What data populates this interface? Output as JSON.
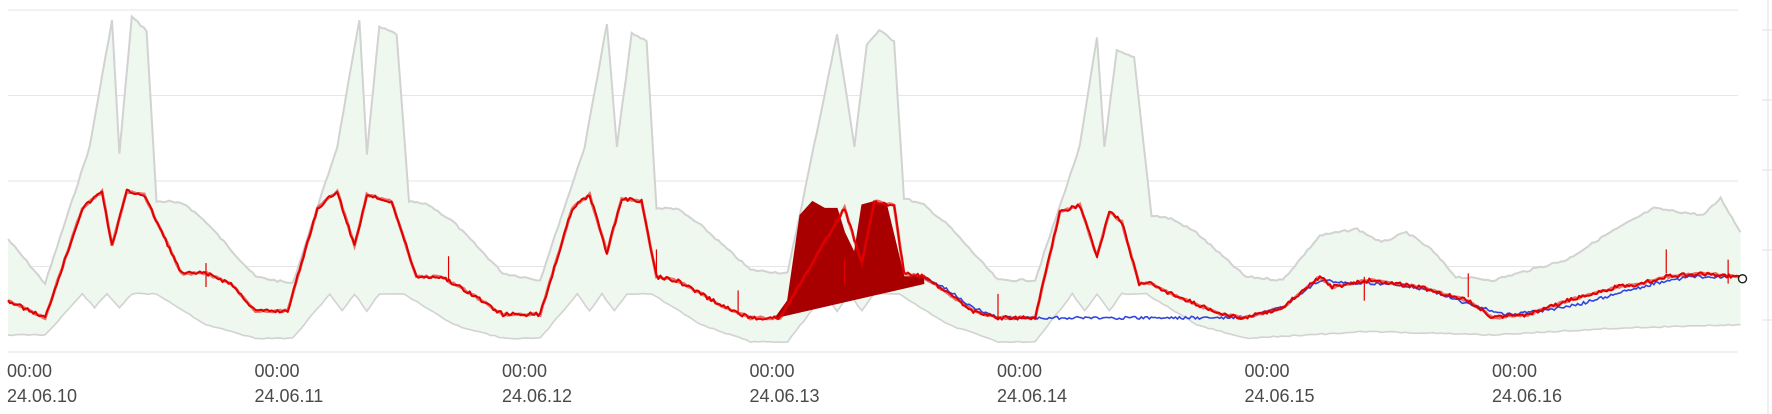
{
  "chart_data": {
    "type": "area",
    "title": "",
    "xlabel": "",
    "ylabel": "",
    "x_unit": "days since 24.06.10 00:00",
    "xlim": [
      0,
      7
    ],
    "ylim": [
      0,
      100
    ],
    "grid": true,
    "legend": "none",
    "x_ticks": [
      {
        "day": 0,
        "time": "00:00",
        "date": "24.06.10"
      },
      {
        "day": 1,
        "time": "00:00",
        "date": "24.06.11"
      },
      {
        "day": 2,
        "time": "00:00",
        "date": "24.06.12"
      },
      {
        "day": 3,
        "time": "00:00",
        "date": "24.06.13"
      },
      {
        "day": 4,
        "time": "00:00",
        "date": "24.06.14"
      },
      {
        "day": 5,
        "time": "00:00",
        "date": "24.06.15"
      },
      {
        "day": 6,
        "time": "00:00",
        "date": "24.06.16"
      }
    ],
    "y_gridlines": [
      25,
      50,
      75,
      100
    ],
    "colors": {
      "band_fill": "#eef8ee",
      "band_edge": "#d2d2d2",
      "current": "#e00000",
      "current_dense": "#a80000",
      "baseline": "#3344dd",
      "grid": "#e6e6e6"
    },
    "series": [
      {
        "role": "band_upper",
        "x": [
          0,
          0.15,
          0.33,
          0.42,
          0.45,
          0.5,
          0.56,
          0.6,
          0.65,
          0.72,
          0.8,
          1.0,
          1.15,
          1.33,
          1.42,
          1.45,
          1.5,
          1.57,
          1.62,
          1.7,
          1.8,
          2.0,
          2.15,
          2.33,
          2.42,
          2.46,
          2.52,
          2.58,
          2.62,
          2.7,
          2.8,
          3.0,
          3.15,
          3.35,
          3.42,
          3.47,
          3.52,
          3.58,
          3.62,
          3.7,
          3.8,
          4.0,
          4.15,
          4.33,
          4.4,
          4.43,
          4.48,
          4.55,
          4.62,
          4.7,
          4.8,
          5.0,
          5.15,
          5.3,
          5.45,
          5.55,
          5.65,
          5.75,
          5.85,
          6.0,
          6.15,
          6.3,
          6.45,
          6.55,
          6.65,
          6.75,
          6.85,
          6.92,
          7.0
        ],
        "values": [
          33,
          20,
          60,
          97,
          58,
          98,
          94,
          44,
          44,
          43,
          38,
          22,
          20,
          60,
          97,
          58,
          95,
          93,
          44,
          43,
          38,
          23,
          21,
          60,
          96,
          60,
          93,
          91,
          42,
          42,
          37,
          24,
          23,
          93,
          60,
          90,
          94,
          91,
          45,
          43,
          37,
          21,
          21,
          60,
          92,
          60,
          88,
          86,
          40,
          39,
          35,
          22,
          21,
          34,
          36,
          32,
          35,
          30,
          22,
          21,
          24,
          27,
          34,
          38,
          42,
          41,
          40,
          45,
          35
        ]
      },
      {
        "role": "band_lower",
        "x": [
          0,
          0.15,
          0.3,
          0.35,
          0.4,
          0.45,
          0.5,
          0.6,
          0.8,
          1.0,
          1.15,
          1.3,
          1.35,
          1.4,
          1.45,
          1.5,
          1.6,
          1.8,
          2.0,
          2.15,
          2.3,
          2.35,
          2.4,
          2.45,
          2.5,
          2.6,
          2.8,
          3.0,
          3.15,
          3.3,
          3.35,
          3.4,
          3.45,
          3.5,
          3.6,
          3.8,
          4.0,
          4.15,
          4.3,
          4.35,
          4.4,
          4.45,
          4.5,
          4.6,
          4.8,
          5.0,
          5.5,
          6.0,
          6.5,
          7.0
        ],
        "values": [
          5,
          5,
          17,
          13,
          17,
          13,
          17,
          17,
          8,
          4,
          4,
          17,
          12,
          17,
          12,
          17,
          17,
          8,
          4,
          4,
          17,
          12,
          17,
          12,
          17,
          17,
          8,
          3,
          3,
          17,
          12,
          17,
          12,
          17,
          17,
          8,
          3,
          3,
          17,
          12,
          17,
          12,
          17,
          17,
          8,
          4,
          6,
          5,
          7,
          8
        ]
      },
      {
        "role": "current",
        "x": [
          0,
          0.15,
          0.3,
          0.38,
          0.42,
          0.48,
          0.55,
          0.7,
          0.8,
          0.9,
          1.0,
          1.13,
          1.25,
          1.33,
          1.4,
          1.45,
          1.55,
          1.65,
          1.75,
          1.85,
          2.0,
          2.15,
          2.28,
          2.35,
          2.42,
          2.48,
          2.56,
          2.62,
          2.7,
          2.8,
          2.9,
          3.0,
          3.12,
          3.38,
          3.45,
          3.5,
          3.58,
          3.62,
          3.7,
          3.8,
          3.9,
          4.0,
          4.15,
          4.25,
          4.33,
          4.4,
          4.45,
          4.5,
          4.57,
          4.62,
          4.7,
          4.8,
          4.9,
          5.0,
          5.15,
          5.3,
          5.35,
          5.5,
          5.6,
          5.7,
          5.8,
          5.9,
          6.0,
          6.15,
          6.3,
          6.5,
          6.6,
          6.7,
          6.85,
          7.0
        ],
        "values": [
          15,
          10,
          42,
          47,
          31,
          47,
          46,
          23,
          23,
          20,
          12,
          12,
          42,
          47,
          31,
          46,
          44,
          22,
          22,
          18,
          11,
          11,
          42,
          46,
          29,
          45,
          44,
          22,
          21,
          17,
          13,
          10,
          10,
          42,
          26,
          44,
          43,
          23,
          22,
          17,
          12,
          10,
          10,
          41,
          43,
          28,
          41,
          38,
          20,
          20,
          17,
          14,
          11,
          10,
          13,
          22,
          19,
          21,
          20,
          19,
          17,
          15,
          10,
          11,
          15,
          19,
          20,
          22,
          23,
          22
        ]
      },
      {
        "role": "current_dense",
        "x": [
          3.1,
          3.15,
          3.2,
          3.25,
          3.3,
          3.35,
          3.38,
          3.42,
          3.45,
          3.5,
          3.55,
          3.62,
          3.7
        ],
        "values": [
          10,
          15,
          40,
          44,
          42,
          42,
          35,
          29,
          43,
          44,
          43,
          22,
          22
        ]
      },
      {
        "role": "baseline",
        "x": [
          3.7,
          3.8,
          3.9,
          4.0,
          4.15,
          5.0,
          5.15,
          5.3,
          5.45,
          5.6,
          5.75,
          5.9,
          6.05,
          6.2,
          6.35,
          6.5,
          6.65,
          6.8,
          6.95
        ],
        "values": [
          22,
          18,
          13,
          10,
          10,
          10,
          13,
          21,
          20,
          20,
          18,
          14,
          11,
          12,
          14,
          17,
          20,
          22,
          22
        ]
      }
    ]
  }
}
